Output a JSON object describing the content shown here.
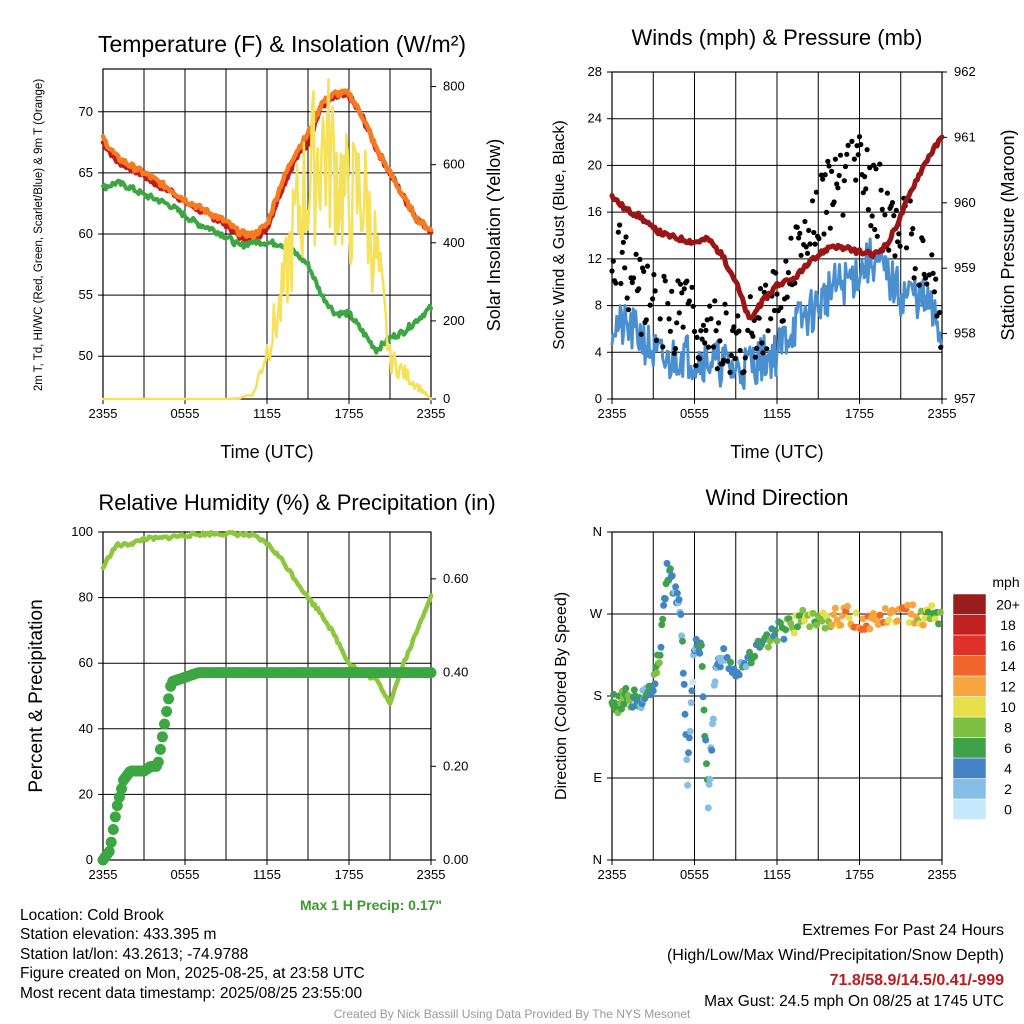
{
  "colors": {
    "temp": "#c21a1f",
    "heatindex": "#f47b20",
    "dewpoint": "#3ba642",
    "solar": "#f6e15a",
    "wind": "#4a90d0",
    "gust": "#000000",
    "pressure": "#9a1515",
    "rh": "#8dc63f",
    "precip": "#3ba642",
    "precipnote": "#3a9a2a",
    "extremes": "#c0191c",
    "credit": "#999999"
  },
  "footer": {
    "location": "Location: Cold Brook",
    "elevation": "Station elevation: 433.395 m",
    "latlon": "Station lat/lon: 43.2613; -74.9788",
    "created": "Figure created on Mon, 2025-08-25, at 23:58 UTC",
    "recent": "Most recent data timestamp: 2025/08/25 23:55:00",
    "extremes_title": "Extremes For Past 24 Hours",
    "extremes_sub": "(High/Low/Max Wind/Precipitation/Snow Depth)",
    "extremes_values": "71.8/58.9/14.5/0.41/-999",
    "max_gust": "Max Gust: 24.5 mph On 08/25 at 1745 UTC",
    "precip_note": "Max 1 H Precip: 0.17\"",
    "credit": "Created By Nick Bassill Using Data Provided By The NYS Mesonet"
  },
  "chart_data": [
    {
      "type": "line",
      "title": "Temperature (F) & Insolation (W/m²)",
      "xlabel": "Time (UTC)",
      "ylabel": "2m T, Td, HI/WC (Red, Green, Scarlet/Blue) & 9m T (Orange)",
      "ylabel_right": "Solar Insolation (Yellow)",
      "xticks": [
        "2355",
        "0555",
        "1155",
        "1755",
        "2355"
      ],
      "ylim": [
        46.5,
        73.5
      ],
      "yticks": [
        50,
        55,
        60,
        65,
        70
      ],
      "ylim_right": [
        0,
        845
      ],
      "yticks_right": [
        0,
        200,
        400,
        600,
        800
      ],
      "x_hours": [
        0,
        1,
        2,
        3,
        4,
        5,
        6,
        7,
        8,
        9,
        10,
        11,
        12,
        13,
        14,
        15,
        16,
        17,
        18,
        19,
        20,
        21,
        22,
        23,
        24
      ],
      "series": [
        {
          "name": "2m T",
          "color": "temp",
          "values": [
            67.5,
            66,
            65.4,
            64.8,
            64,
            63.5,
            62.6,
            62,
            61.4,
            60.8,
            59.8,
            59.5,
            60.5,
            63.5,
            66,
            67.5,
            70.5,
            71.2,
            71.3,
            69.5,
            67,
            65,
            63,
            61.2,
            60.3
          ]
        },
        {
          "name": "Dew point",
          "color": "dewpoint",
          "values": [
            63.8,
            64.2,
            63.8,
            63.2,
            62.8,
            62.3,
            61.5,
            60.8,
            60.4,
            59.8,
            59,
            59.4,
            59.3,
            59.2,
            58.5,
            57.5,
            55,
            53.5,
            53.5,
            52,
            50.5,
            51.5,
            52,
            53,
            54
          ]
        },
        {
          "name": "Heat index",
          "color": "heatindex",
          "values": [
            67.8,
            66.3,
            65.6,
            65,
            64.3,
            63.6,
            62.8,
            62.2,
            61.6,
            61,
            60.1,
            59.9,
            60.8,
            64,
            66.5,
            68.2,
            70.7,
            71.5,
            71.5,
            69.6,
            67,
            65,
            63,
            61.2,
            60.3
          ]
        },
        {
          "name": "Solar",
          "color": "solar",
          "axis": "right",
          "values": [
            0,
            0,
            0,
            0,
            0,
            0,
            0,
            0,
            0,
            0,
            2,
            15,
            150,
            280,
            520,
            650,
            770,
            700,
            580,
            630,
            430,
            120,
            80,
            40,
            0
          ]
        }
      ]
    },
    {
      "type": "line",
      "title": "Winds (mph) & Pressure (mb)",
      "xlabel": "Time (UTC)",
      "ylabel": "Sonic Wind & Gust (Blue, Black)",
      "ylabel_right": "Station Pressure (Maroon)",
      "xticks": [
        "2355",
        "0555",
        "1155",
        "1755",
        "2355"
      ],
      "ylim": [
        0,
        28
      ],
      "yticks": [
        0,
        4,
        8,
        12,
        16,
        20,
        24,
        28
      ],
      "ylim_right": [
        957,
        962
      ],
      "yticks_right": [
        957,
        958,
        959,
        960,
        961,
        962
      ],
      "x_hours": [
        0,
        1,
        2,
        3,
        4,
        5,
        6,
        7,
        8,
        9,
        10,
        11,
        12,
        13,
        14,
        15,
        16,
        17,
        18,
        19,
        20,
        21,
        22,
        23,
        24
      ],
      "series": [
        {
          "name": "Sonic wind",
          "color": "wind",
          "values": [
            6.5,
            6,
            5.5,
            4,
            3,
            4,
            3.5,
            3.5,
            3,
            2.5,
            3,
            3.5,
            4,
            6,
            7,
            8,
            9.5,
            10,
            11,
            12,
            10.5,
            9,
            9,
            8,
            5.5
          ]
        },
        {
          "name": "Gust",
          "color": "gust",
          "style": "points",
          "values": [
            12,
            11,
            9,
            8,
            7,
            7.5,
            6,
            6.5,
            5.5,
            5,
            6,
            6.5,
            8,
            11,
            13,
            15,
            18,
            19.5,
            20,
            18,
            16,
            15,
            13,
            11,
            7
          ]
        },
        {
          "name": "Station pressure",
          "color": "pressure",
          "axis": "right",
          "values": [
            960.1,
            959.9,
            959.8,
            959.6,
            959.5,
            959.45,
            959.4,
            959.45,
            959.2,
            958.8,
            958.2,
            958.5,
            958.75,
            958.8,
            959,
            959.2,
            959.35,
            959.3,
            959.25,
            959.2,
            959.35,
            959.8,
            960.3,
            960.7,
            961
          ]
        }
      ]
    },
    {
      "type": "line",
      "title": "Relative Humidity (%) & Precipitation (in)",
      "xlabel": "",
      "ylabel": "Percent & Precipitation",
      "xticks": [
        "2355",
        "0555",
        "1155",
        "1755",
        "2355"
      ],
      "ylim": [
        0,
        100
      ],
      "yticks": [
        0,
        20,
        40,
        60,
        80,
        100
      ],
      "ylim_right": [
        0,
        0.7
      ],
      "yticks_right": [
        "0.00",
        "0.20",
        "0.40",
        "0.60"
      ],
      "x_hours": [
        0,
        0.5,
        1,
        1.5,
        2,
        2.5,
        3,
        3.5,
        4,
        5,
        6,
        7,
        8,
        9,
        10,
        11,
        12,
        13,
        14,
        15,
        16,
        17,
        18,
        19,
        20,
        21,
        22,
        23,
        24
      ],
      "series": [
        {
          "name": "RH",
          "color": "rh",
          "values": [
            89,
            93,
            96,
            96,
            96.5,
            97,
            98,
            98,
            98,
            98.5,
            99,
            99.3,
            99.5,
            99.5,
            99.3,
            98.8,
            96.5,
            92,
            86,
            80,
            75,
            68,
            60,
            57,
            55,
            48,
            60,
            70,
            81
          ]
        },
        {
          "name": "Precipitation",
          "color": "precip",
          "axis": "right",
          "style": "thick",
          "values": [
            0,
            0.02,
            0.11,
            0.17,
            0.19,
            0.19,
            0.19,
            0.2,
            0.2,
            0.38,
            0.39,
            0.4,
            0.4,
            0.4,
            0.4,
            0.4,
            0.4,
            0.4,
            0.4,
            0.4,
            0.4,
            0.4,
            0.4,
            0.4,
            0.4,
            0.4,
            0.4,
            0.4,
            0.4
          ]
        }
      ]
    },
    {
      "type": "scatter",
      "title": "Wind Direction",
      "xlabel": "",
      "ylabel": "Direction (Colored By Speed)",
      "xticks": [
        "2355",
        "0555",
        "1155",
        "1755",
        "2355"
      ],
      "ylim": [
        0,
        360
      ],
      "yticks": [
        "N",
        "E",
        "S",
        "W",
        "N"
      ],
      "colorbar": {
        "title": "mph",
        "labels": [
          "0",
          "2",
          "4",
          "6",
          "8",
          "10",
          "12",
          "14",
          "16",
          "18",
          "20+"
        ],
        "colors": [
          "#c6e8fb",
          "#85bfe7",
          "#4284c4",
          "#3fa24b",
          "#7fc042",
          "#e7e04a",
          "#f7a53e",
          "#ef662c",
          "#e0302a",
          "#c1211f",
          "#9b1c1c"
        ]
      },
      "x_hours": [
        0,
        0.5,
        1,
        1.5,
        2,
        2.5,
        3,
        3.5,
        4,
        4.5,
        5,
        5.5,
        6,
        6.5,
        7,
        7.5,
        8,
        9,
        10,
        11,
        12,
        13,
        14,
        15,
        16,
        17,
        18,
        19,
        20,
        21,
        22,
        23,
        24
      ],
      "directions": [
        175,
        170,
        180,
        178,
        172,
        180,
        195,
        230,
        320,
        300,
        280,
        90,
        240,
        230,
        60,
        200,
        230,
        210,
        225,
        235,
        250,
        255,
        265,
        260,
        265,
        270,
        262,
        265,
        268,
        272,
        270,
        268,
        270
      ],
      "speeds": [
        6,
        7,
        7,
        5,
        4,
        5,
        6,
        5,
        4,
        3,
        4,
        2,
        4,
        5,
        2,
        3,
        4,
        4,
        5,
        6,
        6,
        8,
        8,
        9,
        11,
        12,
        13,
        12,
        11,
        12,
        10,
        8,
        6
      ]
    }
  ]
}
